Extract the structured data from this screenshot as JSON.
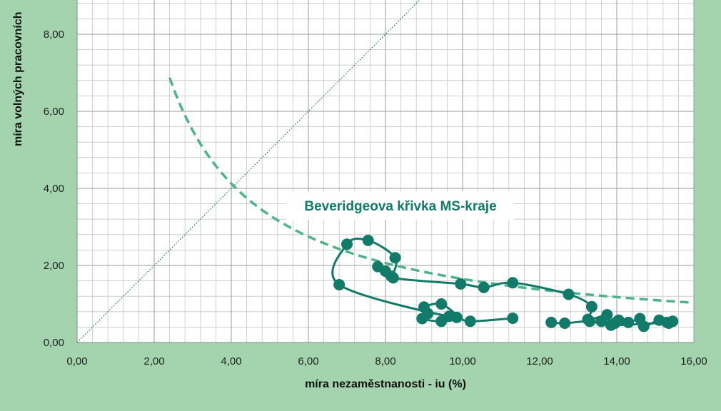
{
  "chart_data": {
    "type": "scatter",
    "title": "",
    "xlabel": "míra nezaměstnanosti  - iu (%)",
    "ylabel": "míra volných pracovních",
    "xlim": [
      0,
      16
    ],
    "ylim": [
      0,
      8.5
    ],
    "x_ticks": [
      "0,00",
      "2,00",
      "4,00",
      "6,00",
      "8,00",
      "10,00",
      "12,00",
      "14,00",
      "16,00"
    ],
    "y_ticks": [
      "0,00",
      "2,00",
      "4,00",
      "6,00",
      "8,00"
    ],
    "grid": true,
    "annotation": "Beveridgeova křivka MS-kraje",
    "colors": {
      "series": "#127a68",
      "curve": "#4db487",
      "diagonal": "#127a68",
      "background": "#a3d4ad",
      "grid": "#b8b8b8"
    },
    "series": [
      {
        "points": [
          [
            11.3,
            0.63
          ],
          [
            10.2,
            0.55
          ],
          [
            9.85,
            0.65
          ],
          [
            9.45,
            0.55
          ],
          [
            8.95,
            0.62
          ],
          [
            9.1,
            0.75
          ],
          [
            9.0,
            0.92
          ],
          [
            9.45,
            1.0
          ],
          [
            9.65,
            0.68
          ],
          [
            6.8,
            1.5
          ],
          [
            7.0,
            2.55
          ],
          [
            7.55,
            2.65
          ],
          [
            8.25,
            2.2
          ],
          [
            8.15,
            1.72
          ],
          [
            8.0,
            1.85
          ],
          [
            7.8,
            1.97
          ],
          [
            8.2,
            1.68
          ],
          [
            9.95,
            1.52
          ],
          [
            10.55,
            1.43
          ],
          [
            11.3,
            1.55
          ],
          [
            12.75,
            1.25
          ],
          [
            13.35,
            0.93
          ],
          [
            13.25,
            0.6
          ],
          [
            13.75,
            0.72
          ],
          [
            13.6,
            0.55
          ],
          [
            13.95,
            0.5
          ],
          [
            14.05,
            0.58
          ],
          [
            14.3,
            0.52
          ],
          [
            14.6,
            0.62
          ],
          [
            14.7,
            0.42
          ],
          [
            15.1,
            0.58
          ],
          [
            15.35,
            0.5
          ],
          [
            15.45,
            0.55
          ],
          [
            15.3,
            0.52
          ],
          [
            13.85,
            0.45
          ],
          [
            13.3,
            0.55
          ],
          [
            12.65,
            0.5
          ],
          [
            12.3,
            0.52
          ]
        ]
      }
    ],
    "reference_curve": {
      "type": "hyperbola",
      "k": 16.5,
      "x_from": 2.4,
      "x_to": 16
    },
    "reference_line": {
      "type": "y=x"
    }
  }
}
